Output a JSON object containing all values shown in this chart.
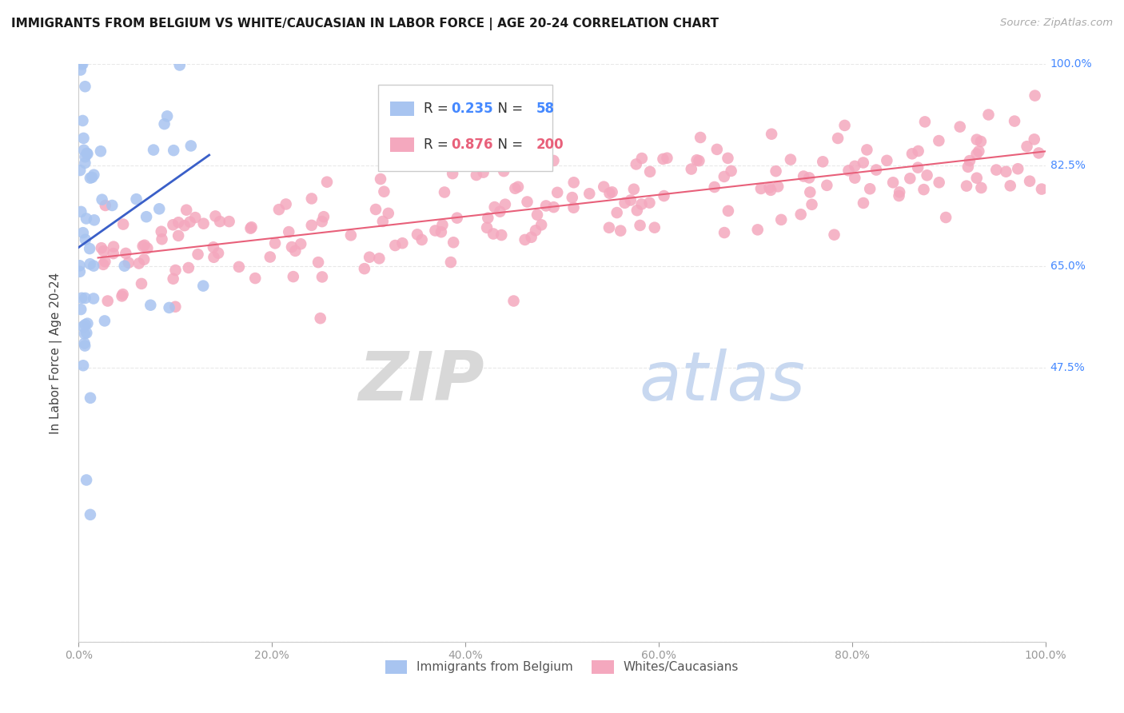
{
  "title": "IMMIGRANTS FROM BELGIUM VS WHITE/CAUCASIAN IN LABOR FORCE | AGE 20-24 CORRELATION CHART",
  "source": "Source: ZipAtlas.com",
  "ylabel": "In Labor Force | Age 20-24",
  "xlim": [
    0.0,
    1.0
  ],
  "ylim": [
    0.0,
    1.0
  ],
  "xtick_positions": [
    0.0,
    0.2,
    0.4,
    0.6,
    0.8,
    1.0
  ],
  "xtick_labels": [
    "0.0%",
    "20.0%",
    "40.0%",
    "60.0%",
    "80.0%",
    "100.0%"
  ],
  "ytick_positions": [
    0.0,
    0.475,
    0.65,
    0.825,
    1.0
  ],
  "ytick_right_labels": [
    "100.0%",
    "82.5%",
    "65.0%",
    "47.5%"
  ],
  "ytick_right_positions": [
    1.0,
    0.825,
    0.65,
    0.475
  ],
  "legend_R_blue": "0.235",
  "legend_N_blue": "58",
  "legend_R_pink": "0.876",
  "legend_N_pink": "200",
  "blue_color": "#a8c4f0",
  "pink_color": "#f4a8be",
  "blue_line_color": "#3a5fc8",
  "pink_line_color": "#e8607a",
  "background_color": "#ffffff",
  "grid_color": "#e8e8e8",
  "right_label_color": "#4488ff",
  "tick_color": "#999999"
}
